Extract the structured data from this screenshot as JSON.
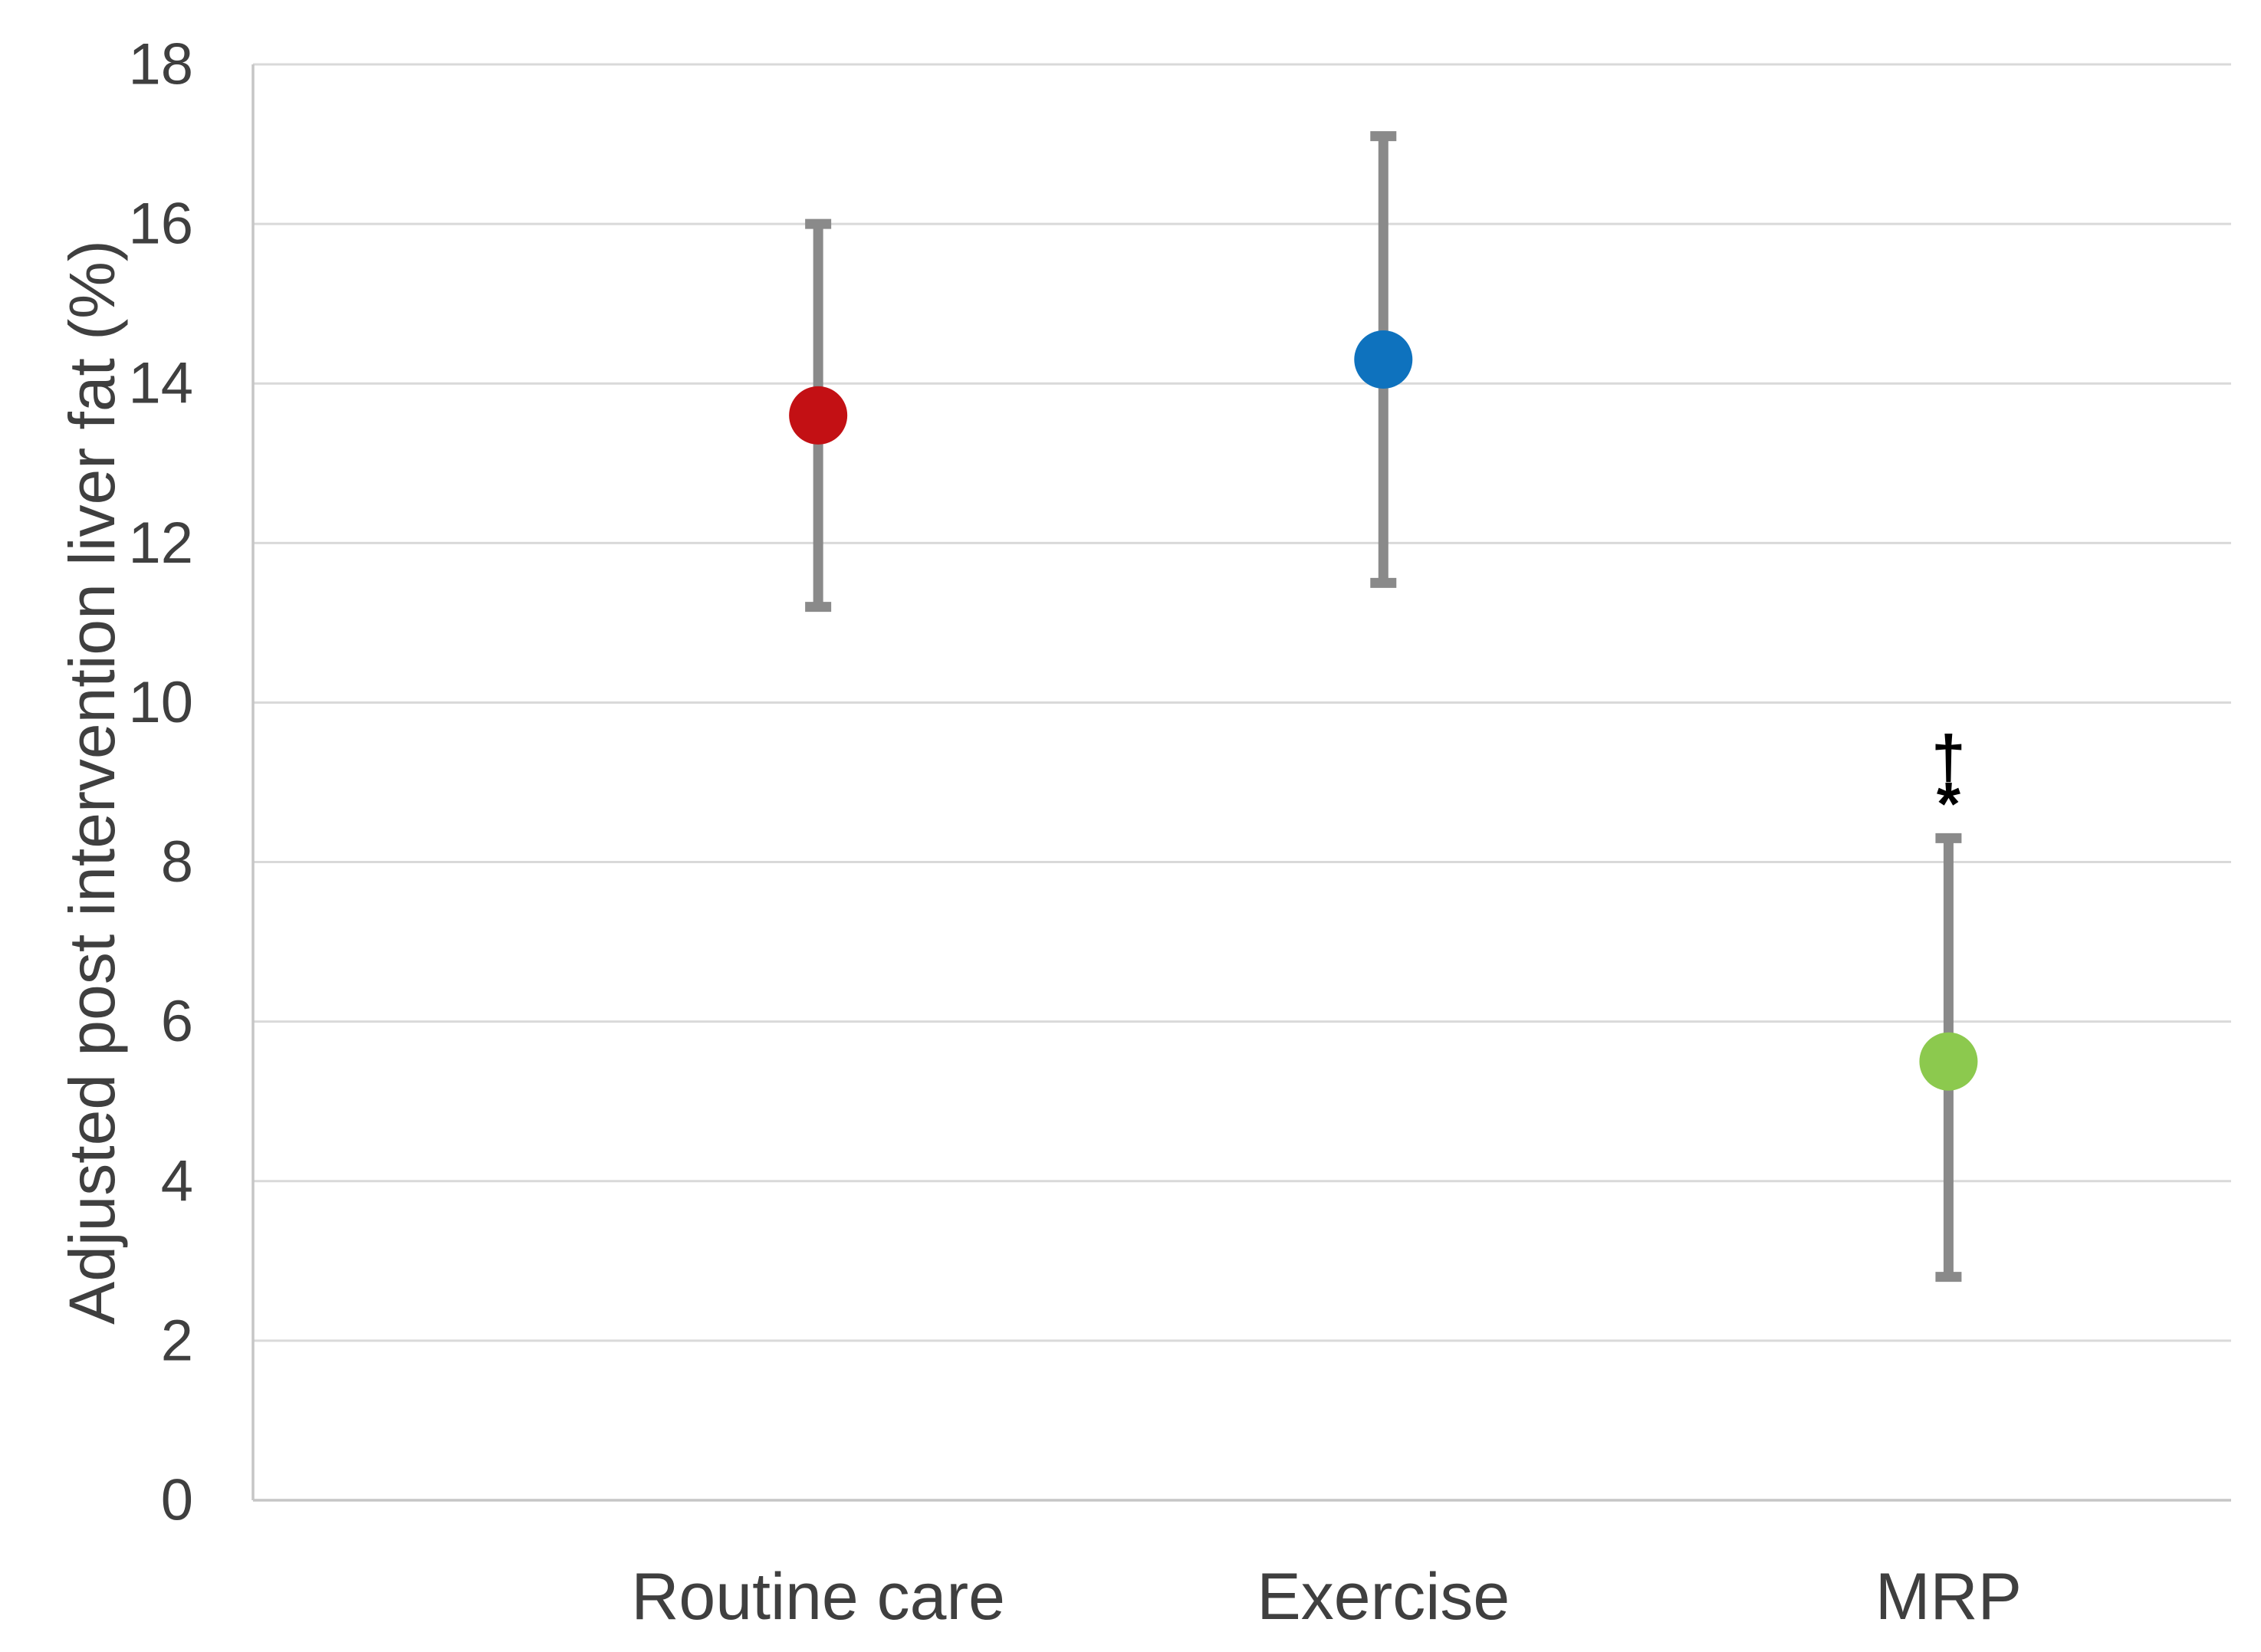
{
  "figure": {
    "background": "#ffffff"
  },
  "chart_data": {
    "type": "scatter",
    "title": "",
    "xlabel": "",
    "ylabel": "Adjusted post intervention liver fat (%)",
    "ylim": [
      0,
      18
    ],
    "yticks": [
      0,
      2,
      4,
      6,
      8,
      10,
      12,
      14,
      16,
      18
    ],
    "grid": "horizontal",
    "legend": "none",
    "categories": [
      "Routine care",
      "Exercise",
      "MRP"
    ],
    "series": [
      {
        "name": "Routine care",
        "mean": 13.6,
        "ci_low": 11.2,
        "ci_high": 16.0,
        "marker_color": "#c31014",
        "annotations": []
      },
      {
        "name": "Exercise",
        "mean": 14.3,
        "ci_low": 11.5,
        "ci_high": 17.1,
        "marker_color": "#0e72be",
        "annotations": []
      },
      {
        "name": "MRP",
        "mean": 5.5,
        "ci_low": 2.8,
        "ci_high": 8.3,
        "marker_color": "#8cc94e",
        "annotations": [
          "†",
          "*"
        ]
      }
    ],
    "error_bar_color": "#8a8a8a",
    "gridline_color": "#d9d9d9",
    "axis_line_color": "#c6c6c6",
    "tick_label_color": "#3f3f3f",
    "category_label_color": "#3f3f3f",
    "annotation_color": "#000000"
  }
}
